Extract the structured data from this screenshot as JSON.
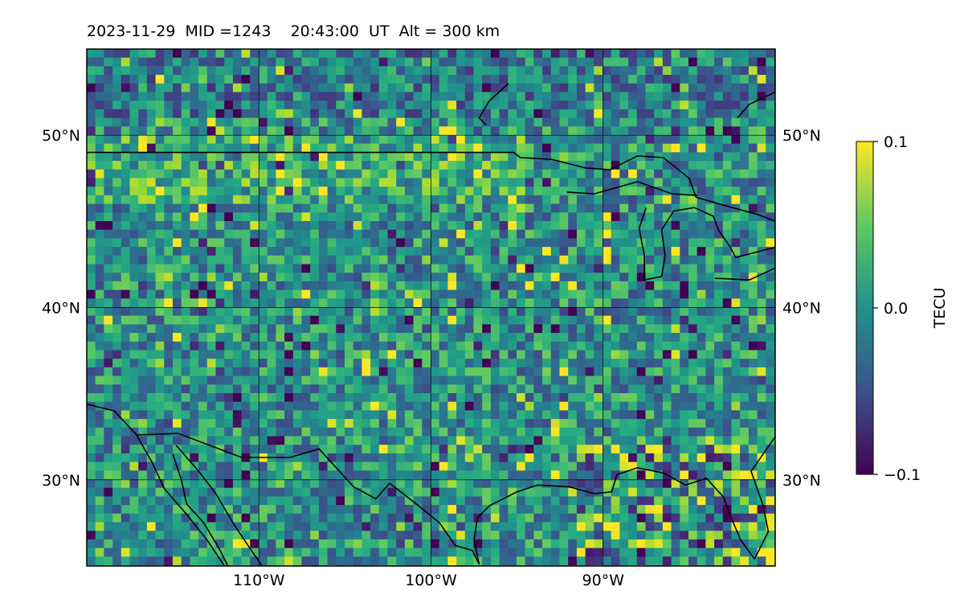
{
  "title": "2023-11-29  MID =1243    20:43:00  UT  Alt = 300 km",
  "map": {
    "type": "heatmap",
    "projection": "plate-carree",
    "lon_range": [
      -120,
      -80
    ],
    "lat_range": [
      25,
      55
    ],
    "grid": true,
    "colormap": "viridis",
    "lat_ticks": [
      {
        "value": 30,
        "label": "30°N"
      },
      {
        "value": 40,
        "label": "40°N"
      },
      {
        "value": 50,
        "label": "50°N"
      }
    ],
    "lon_ticks": [
      {
        "value": -110,
        "label": "110°W"
      },
      {
        "value": -100,
        "label": "100°W"
      },
      {
        "value": -90,
        "label": "90°W"
      }
    ],
    "coastlines": [
      [
        [
          -120,
          34.4
        ],
        [
          -118.4,
          34
        ],
        [
          -117.1,
          32.6
        ],
        [
          -116.2,
          31
        ],
        [
          -115.5,
          29.5
        ],
        [
          -114.2,
          28
        ],
        [
          -113,
          26.5
        ],
        [
          -112,
          25
        ]
      ],
      [
        [
          -117.1,
          32.6
        ],
        [
          -114.7,
          32.7
        ],
        [
          -111,
          31.3
        ],
        [
          -108.2,
          31.3
        ],
        [
          -106.5,
          31.8
        ],
        [
          -104.5,
          29.6
        ],
        [
          -103.2,
          28.9
        ],
        [
          -102.4,
          29.8
        ],
        [
          -100.6,
          28.4
        ],
        [
          -99.5,
          27.5
        ],
        [
          -98.6,
          26.2
        ],
        [
          -97.6,
          25.9
        ],
        [
          -97.2,
          25.1
        ]
      ],
      [
        [
          -114.8,
          32
        ],
        [
          -113.5,
          30.5
        ],
        [
          -112.5,
          29.2
        ],
        [
          -111.5,
          27.5
        ],
        [
          -110.5,
          26
        ],
        [
          -109.8,
          25
        ]
      ],
      [
        [
          -115,
          31.5
        ],
        [
          -114.5,
          30
        ],
        [
          -114.2,
          28.6
        ],
        [
          -113.2,
          27.5
        ],
        [
          -112.3,
          26
        ],
        [
          -111.8,
          25
        ]
      ],
      [
        [
          -97.2,
          25.1
        ],
        [
          -97.5,
          26.5
        ],
        [
          -97.3,
          27.8
        ],
        [
          -96.6,
          28.5
        ],
        [
          -95,
          29.3
        ],
        [
          -93.8,
          29.7
        ],
        [
          -92,
          29.6
        ],
        [
          -90.5,
          29.2
        ],
        [
          -89.5,
          29.3
        ],
        [
          -89.2,
          30.3
        ],
        [
          -88,
          30.7
        ],
        [
          -86.5,
          30.4
        ],
        [
          -85.2,
          29.7
        ],
        [
          -84,
          30.1
        ],
        [
          -83,
          29
        ],
        [
          -82.6,
          27.9
        ],
        [
          -82,
          26.5
        ],
        [
          -81.2,
          25.4
        ]
      ],
      [
        [
          -81.2,
          25.4
        ],
        [
          -80.4,
          27
        ],
        [
          -80.7,
          28.5
        ],
        [
          -81.4,
          30.5
        ],
        [
          -80,
          32.5
        ]
      ],
      [
        [
          -120,
          49
        ],
        [
          -95.2,
          49
        ],
        [
          -94.8,
          48.7
        ],
        [
          -93,
          48.6
        ],
        [
          -91,
          48.1
        ],
        [
          -89.6,
          48
        ],
        [
          -88,
          48.8
        ],
        [
          -86.5,
          48.7
        ],
        [
          -85,
          47.5
        ],
        [
          -84.6,
          46.4
        ],
        [
          -82.5,
          45.8
        ],
        [
          -81,
          45.4
        ],
        [
          -80,
          45
        ]
      ],
      [
        [
          -92.1,
          46.7
        ],
        [
          -90.5,
          46.6
        ],
        [
          -88,
          47.3
        ],
        [
          -86,
          46.6
        ],
        [
          -84.5,
          46.5
        ]
      ],
      [
        [
          -87.5,
          45.8
        ],
        [
          -87.9,
          44.6
        ],
        [
          -87.6,
          43
        ],
        [
          -87.6,
          41.6
        ],
        [
          -86.6,
          41.8
        ],
        [
          -86.4,
          43
        ],
        [
          -86.6,
          44.5
        ],
        [
          -85.9,
          45.6
        ],
        [
          -84.7,
          45.8
        ]
      ],
      [
        [
          -84.7,
          45.8
        ],
        [
          -83.6,
          45.3
        ],
        [
          -83.3,
          44.5
        ],
        [
          -82.6,
          43.5
        ],
        [
          -82.3,
          42.9
        ],
        [
          -80,
          43.5
        ]
      ],
      [
        [
          -83.5,
          41.7
        ],
        [
          -81.5,
          41.6
        ],
        [
          -80,
          42.3
        ]
      ],
      [
        [
          -80,
          54.9
        ],
        [
          -80,
          52.5
        ],
        [
          -81.5,
          51.8
        ],
        [
          -82.2,
          51
        ]
      ],
      [
        [
          -95.5,
          53
        ],
        [
          -96.6,
          52
        ],
        [
          -97.2,
          51
        ],
        [
          -96.8,
          50.6
        ]
      ]
    ],
    "colorbar": {
      "label": "TECU",
      "ticks": [
        {
          "value": 0.1,
          "label": "0.1"
        },
        {
          "value": 0.0,
          "label": "0.0"
        },
        {
          "value": -0.1,
          "label": "−0.1"
        }
      ],
      "range": [
        -0.1,
        0.1
      ]
    }
  }
}
